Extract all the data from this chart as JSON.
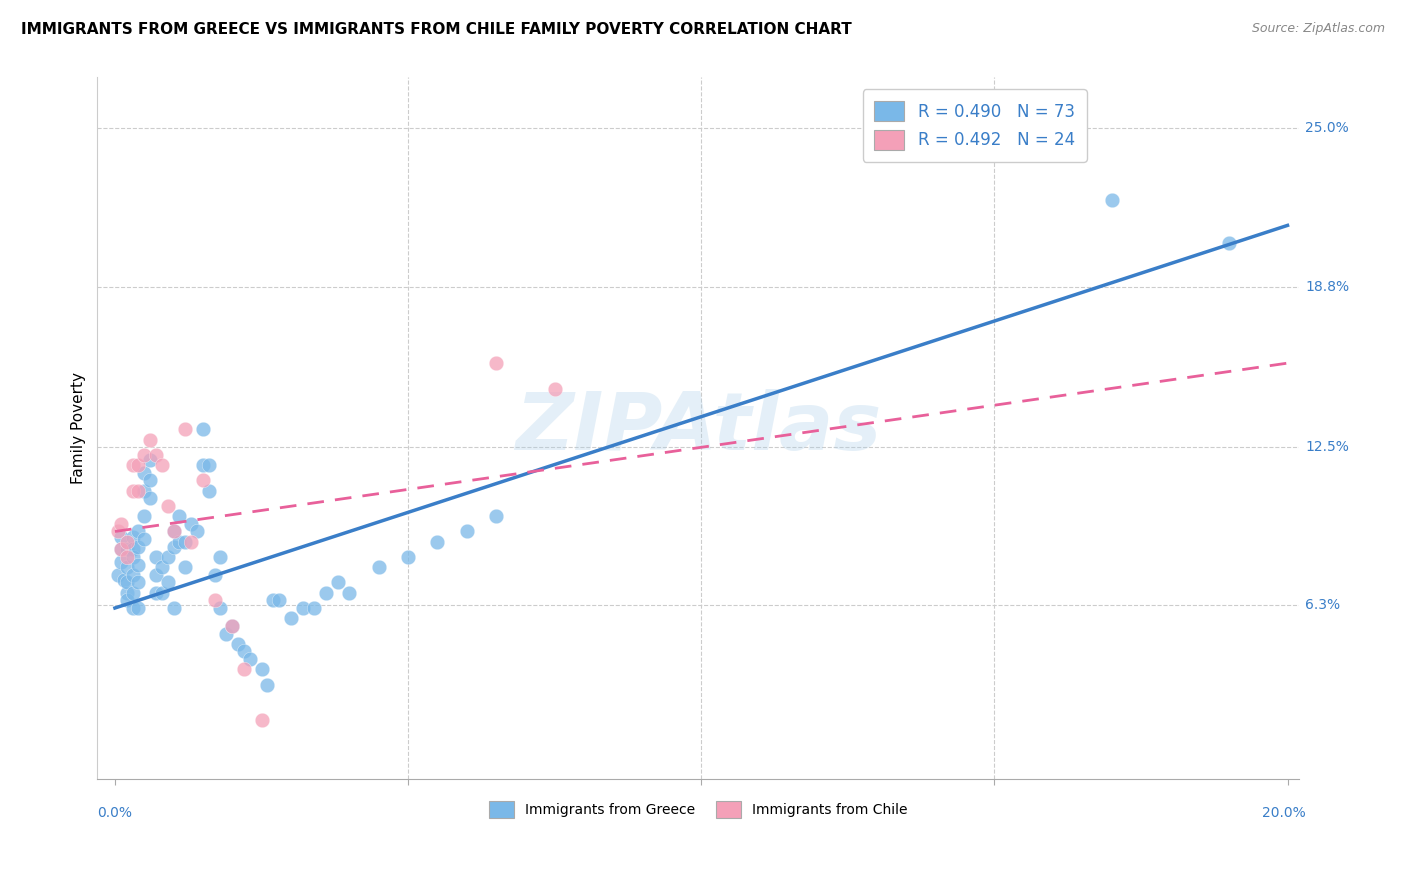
{
  "title": "IMMIGRANTS FROM GREECE VS IMMIGRANTS FROM CHILE FAMILY POVERTY CORRELATION CHART",
  "source": "Source: ZipAtlas.com",
  "ylabel": "Family Poverty",
  "ytick_labels": [
    "25.0%",
    "18.8%",
    "12.5%",
    "6.3%"
  ],
  "ytick_values": [
    0.25,
    0.188,
    0.125,
    0.063
  ],
  "xlim": [
    0.0,
    0.2
  ],
  "ylim": [
    0.0,
    0.27
  ],
  "greece_color": "#7ab8e8",
  "chile_color": "#f4a0b8",
  "greece_line_color": "#3a7ec8",
  "chile_line_color": "#e8609a",
  "greece_R": 0.49,
  "greece_N": 73,
  "chile_R": 0.492,
  "chile_N": 24,
  "legend_label_greece": "R = 0.490   N = 73",
  "legend_label_chile": "R = 0.492   N = 24",
  "bottom_legend_greece": "Immigrants from Greece",
  "bottom_legend_chile": "Immigrants from Chile",
  "watermark": "ZIPAtlas",
  "greece_line_x0": 0.0,
  "greece_line_y0": 0.062,
  "greece_line_x1": 0.2,
  "greece_line_y1": 0.212,
  "chile_line_x0": 0.0,
  "chile_line_y0": 0.092,
  "chile_line_x1": 0.2,
  "chile_line_y1": 0.158,
  "greece_x": [
    0.0005,
    0.001,
    0.001,
    0.001,
    0.0015,
    0.002,
    0.002,
    0.002,
    0.002,
    0.002,
    0.003,
    0.003,
    0.003,
    0.003,
    0.003,
    0.003,
    0.004,
    0.004,
    0.004,
    0.004,
    0.004,
    0.005,
    0.005,
    0.005,
    0.005,
    0.006,
    0.006,
    0.006,
    0.007,
    0.007,
    0.007,
    0.008,
    0.008,
    0.009,
    0.009,
    0.01,
    0.01,
    0.01,
    0.011,
    0.011,
    0.012,
    0.012,
    0.013,
    0.014,
    0.015,
    0.015,
    0.016,
    0.016,
    0.017,
    0.018,
    0.018,
    0.019,
    0.02,
    0.021,
    0.022,
    0.023,
    0.025,
    0.026,
    0.027,
    0.028,
    0.03,
    0.032,
    0.034,
    0.036,
    0.038,
    0.04,
    0.045,
    0.05,
    0.055,
    0.06,
    0.065,
    0.17,
    0.19
  ],
  "greece_y": [
    0.075,
    0.08,
    0.09,
    0.085,
    0.073,
    0.085,
    0.078,
    0.068,
    0.072,
    0.065,
    0.09,
    0.085,
    0.082,
    0.075,
    0.068,
    0.062,
    0.092,
    0.086,
    0.079,
    0.072,
    0.062,
    0.115,
    0.108,
    0.098,
    0.089,
    0.12,
    0.112,
    0.105,
    0.082,
    0.075,
    0.068,
    0.078,
    0.068,
    0.082,
    0.072,
    0.092,
    0.086,
    0.062,
    0.098,
    0.088,
    0.088,
    0.078,
    0.095,
    0.092,
    0.118,
    0.132,
    0.118,
    0.108,
    0.075,
    0.082,
    0.062,
    0.052,
    0.055,
    0.048,
    0.045,
    0.042,
    0.038,
    0.032,
    0.065,
    0.065,
    0.058,
    0.062,
    0.062,
    0.068,
    0.072,
    0.068,
    0.078,
    0.082,
    0.088,
    0.092,
    0.098,
    0.222,
    0.205
  ],
  "chile_x": [
    0.0005,
    0.001,
    0.001,
    0.002,
    0.002,
    0.003,
    0.003,
    0.004,
    0.004,
    0.005,
    0.006,
    0.007,
    0.008,
    0.009,
    0.01,
    0.012,
    0.013,
    0.015,
    0.017,
    0.02,
    0.022,
    0.025,
    0.065,
    0.075
  ],
  "chile_y": [
    0.092,
    0.095,
    0.085,
    0.088,
    0.082,
    0.118,
    0.108,
    0.118,
    0.108,
    0.122,
    0.128,
    0.122,
    0.118,
    0.102,
    0.092,
    0.132,
    0.088,
    0.112,
    0.065,
    0.055,
    0.038,
    0.018,
    0.158,
    0.148
  ]
}
